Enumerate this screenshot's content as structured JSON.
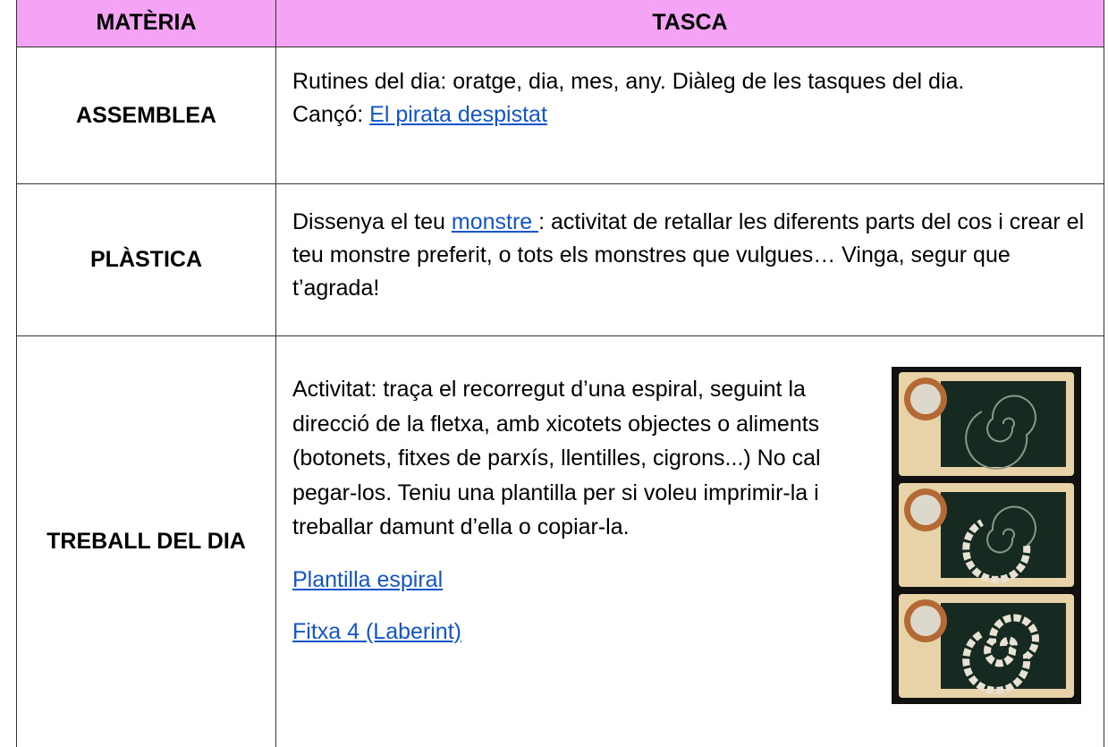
{
  "table": {
    "header": [
      "MATÈRIA",
      "TASCA"
    ],
    "rows": [
      {
        "subject": "ASSEMBLEA",
        "text": "Rutines del dia: oratge, dia, mes, any. Diàleg de les tasques del dia.",
        "song_label": "Cançó: ",
        "song_link": "El pirata despistat"
      },
      {
        "subject": "PLÀSTICA",
        "text_before": "Dissenya el teu ",
        "link": "monstre ",
        "text_after": ": activitat de retallar les diferents parts del cos i crear el teu monstre preferit, o tots els monstres que vulgues… Vinga, segur que t’agrada!"
      },
      {
        "subject": "TREBALL DEL DIA",
        "text": "Activitat: traça el recorregut d’una espiral, seguint la direcció de la fletxa, amb xicotets objectes o aliments (botonets, fitxes de parxís, llentilles, cigrons...) No cal pegar-los. Teniu una plantilla per si voleu imprimir-la i treballar damunt d’ella o copiar-la.",
        "links": [
          "Plantilla espiral",
          "Fitxa 4 (Laberint)"
        ]
      }
    ]
  }
}
